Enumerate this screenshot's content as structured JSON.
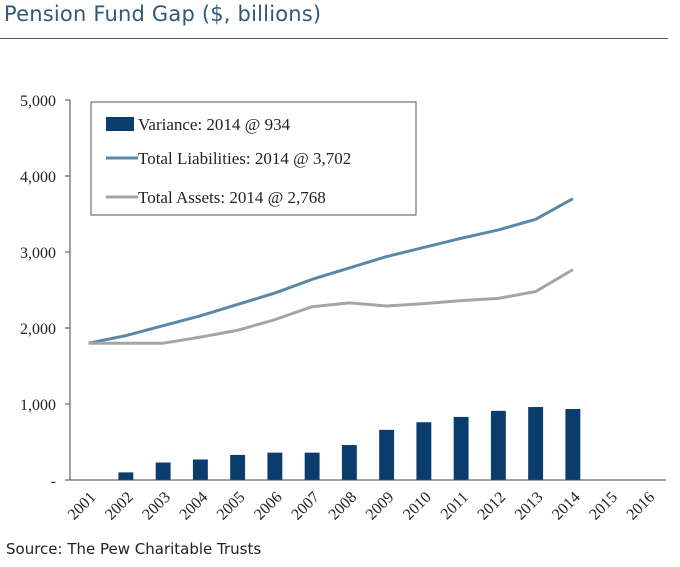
{
  "title": "Pension Fund Gap ($, billions)",
  "source": "Source: The Pew Charitable Trusts",
  "colors": {
    "variance": "#0b3c6e",
    "liabilities": "#5b88a6",
    "assets": "#a3a6a9",
    "axis": "#444444"
  },
  "chart_data": {
    "type": "bar",
    "categories": [
      "2001",
      "2002",
      "2003",
      "2004",
      "2005",
      "2006",
      "2007",
      "2008",
      "2009",
      "2010",
      "2011",
      "2012",
      "2013",
      "2014",
      "2015",
      "2016"
    ],
    "ylim": [
      0,
      5000
    ],
    "yticks": [
      0,
      1000,
      2000,
      3000,
      4000,
      5000
    ],
    "ytick_labels": [
      "-",
      "1,000",
      "2,000",
      "3,000",
      "4,000",
      "5,000"
    ],
    "xlabel": "",
    "ylabel": "",
    "grid": false,
    "legend_position": "top-left",
    "series": [
      {
        "name": "Variance: 2014 @ 934",
        "type": "bar",
        "values": [
          null,
          100,
          230,
          270,
          330,
          360,
          360,
          460,
          660,
          760,
          830,
          910,
          960,
          934,
          null,
          null
        ]
      },
      {
        "name": "Total Liabilities: 2014 @ 3,702",
        "type": "line",
        "values": [
          1800,
          1900,
          2030,
          2160,
          2310,
          2460,
          2640,
          2790,
          2940,
          3060,
          3180,
          3290,
          3430,
          3702,
          null,
          null
        ]
      },
      {
        "name": "Total Assets: 2014 @ 2,768",
        "type": "line",
        "values": [
          1800,
          1800,
          1800,
          1880,
          1970,
          2110,
          2280,
          2330,
          2290,
          2320,
          2360,
          2390,
          2480,
          2768,
          null,
          null
        ]
      }
    ]
  }
}
